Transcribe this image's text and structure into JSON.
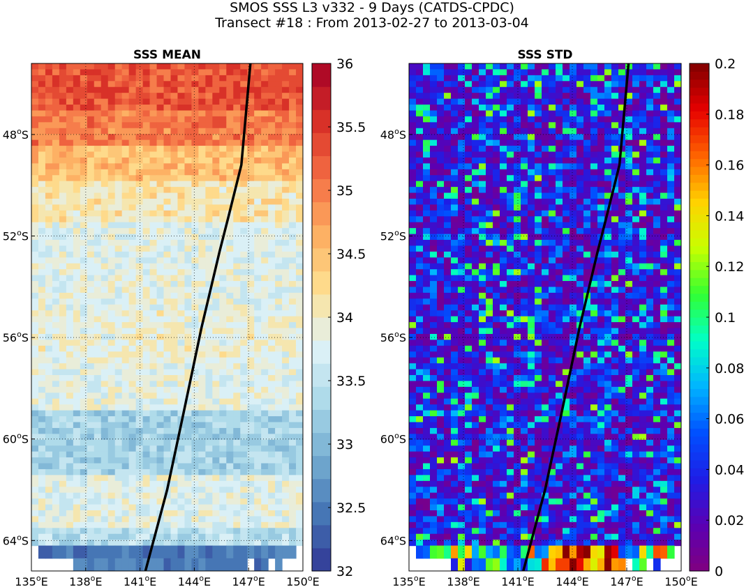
{
  "page": {
    "title_line1": "SMOS SSS L3 v332 - 9 Days (CATDS-CPDC)",
    "title_line2": "Transect #18 : From 2013-02-27 to 2013-03-04"
  },
  "chart_data": [
    {
      "type": "heatmap",
      "title": "SSS MEAN",
      "x_ticks": [
        135,
        138,
        141,
        144,
        147,
        150
      ],
      "x_tick_labels": [
        "135°E",
        "138°E",
        "141°E",
        "144°E",
        "147°E",
        "150°E"
      ],
      "y_ticks": [
        -48,
        -52,
        -56,
        -60,
        -64
      ],
      "y_tick_labels": [
        "48°S",
        "52°S",
        "56°S",
        "60°S",
        "64°S"
      ],
      "xlim": [
        135,
        150
      ],
      "ylim": [
        -65.2,
        -45.2
      ],
      "grid": true,
      "colorbar": {
        "min": 32,
        "max": 36,
        "levels": 22,
        "tick_values": [
          32,
          32.5,
          33,
          33.5,
          34,
          34.5,
          35,
          35.5,
          36
        ],
        "tick_labels": [
          "32",
          "32.5",
          "33",
          "33.5",
          "34",
          "34.5",
          "35",
          "35.5",
          "36"
        ],
        "colormap": [
          "#313695",
          "#4575b4",
          "#74add1",
          "#abd9e9",
          "#e0f3f8",
          "#fee090",
          "#fdae61",
          "#f46d43",
          "#d73027",
          "#a50026"
        ]
      },
      "field_bands": [
        {
          "lat_from": -45.2,
          "lat_to": -47.0,
          "value": 35.3
        },
        {
          "lat_from": -47.0,
          "lat_to": -48.5,
          "value": 35.0
        },
        {
          "lat_from": -48.5,
          "lat_to": -49.8,
          "value": 34.5
        },
        {
          "lat_from": -49.8,
          "lat_to": -51.5,
          "value": 34.1
        },
        {
          "lat_from": -51.5,
          "lat_to": -55.0,
          "value": 33.8
        },
        {
          "lat_from": -55.0,
          "lat_to": -57.0,
          "value": 33.9
        },
        {
          "lat_from": -57.0,
          "lat_to": -58.8,
          "value": 33.8
        },
        {
          "lat_from": -58.8,
          "lat_to": -61.5,
          "value": 33.3
        },
        {
          "lat_from": -61.5,
          "lat_to": -63.5,
          "value": 33.8
        },
        {
          "lat_from": -63.5,
          "lat_to": -64.2,
          "value": 33.4
        },
        {
          "lat_from": -64.2,
          "lat_to": -65.2,
          "value": 32.4
        }
      ],
      "transect": {
        "lon": [
          141.3,
          142.5,
          143.4,
          144.4,
          145.4,
          145.9,
          146.6,
          147.1
        ],
        "lat": [
          -65.2,
          -62.0,
          -59.0,
          -55.6,
          -52.6,
          -51.2,
          -49.2,
          -45.2
        ]
      }
    },
    {
      "type": "heatmap",
      "title": "SSS STD",
      "x_ticks": [
        135,
        138,
        141,
        144,
        147,
        150
      ],
      "x_tick_labels": [
        "135°E",
        "138°E",
        "141°E",
        "144°E",
        "147°E",
        "150°E"
      ],
      "y_ticks": [
        -48,
        -52,
        -56,
        -60,
        -64
      ],
      "y_tick_labels": [
        "48°S",
        "52°S",
        "56°S",
        "60°S",
        "64°S"
      ],
      "xlim": [
        135,
        150
      ],
      "ylim": [
        -65.2,
        -45.2
      ],
      "grid": true,
      "colorbar": {
        "min": 0,
        "max": 0.2,
        "levels": 64,
        "tick_values": [
          0,
          0.02,
          0.04,
          0.06,
          0.08,
          0.1,
          0.12,
          0.14,
          0.16,
          0.18,
          0.2
        ],
        "tick_labels": [
          "0",
          "0.02",
          "0.04",
          "0.06",
          "0.08",
          "0.1",
          "0.12",
          "0.14",
          "0.16",
          "0.18",
          "0.2"
        ],
        "colormap": [
          "#800080",
          "#5a00b4",
          "#1e1ee6",
          "#0050ff",
          "#00b4ff",
          "#00ffc8",
          "#32ff32",
          "#c8ff00",
          "#ffd200",
          "#ff6400",
          "#e60000",
          "#800000"
        ]
      },
      "field_typical_value": 0.04,
      "transect": {
        "lon": [
          141.3,
          142.5,
          143.4,
          144.4,
          145.4,
          145.9,
          146.6,
          147.1
        ],
        "lat": [
          -65.2,
          -62.0,
          -59.0,
          -55.6,
          -52.6,
          -51.2,
          -49.2,
          -45.2
        ]
      }
    }
  ]
}
